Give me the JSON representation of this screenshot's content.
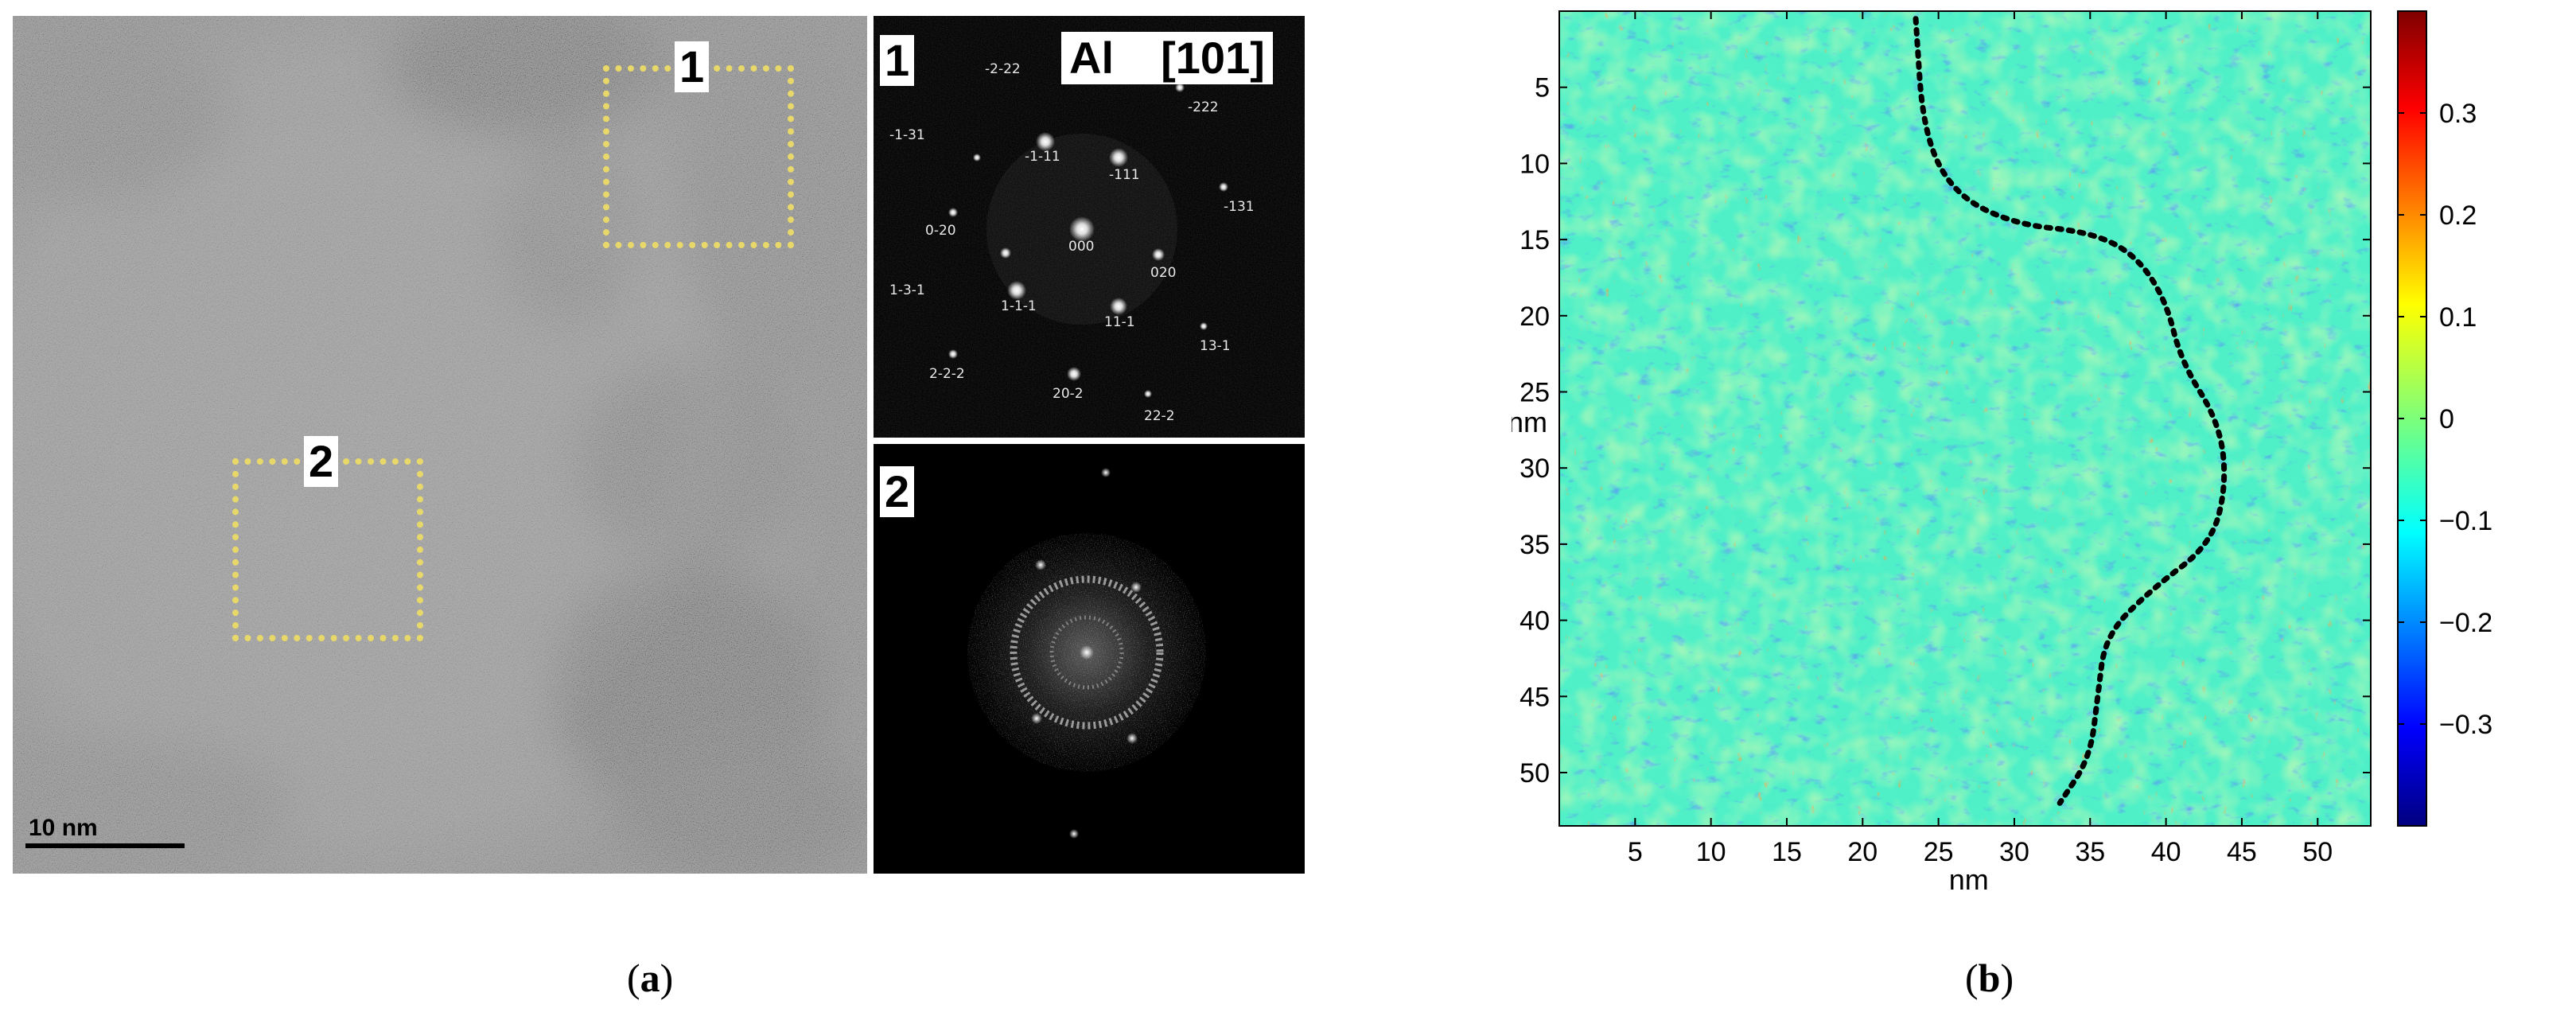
{
  "panel_a": {
    "caption_letter": "a",
    "tem": {
      "roi_1_label": "1",
      "roi_2_label": "2",
      "scale_bar_label": "10 nm"
    },
    "fft_1": {
      "label": "1",
      "title_element": "Al",
      "title_zone": "[101]",
      "spots": [
        "-2-22",
        "-222",
        "-1-31",
        "-1-11",
        "-111",
        "-131",
        "0-20",
        "000",
        "020",
        "1-3-1",
        "1-1-1",
        "11-1",
        "13-1",
        "2-2-2",
        "20-2",
        "22-2"
      ]
    },
    "fft_2": {
      "label": "2"
    }
  },
  "panel_b": {
    "caption_letter": "b",
    "chart_data": {
      "type": "heatmap",
      "xlabel": "nm",
      "ylabel": "nm",
      "x_ticks": [
        5,
        10,
        15,
        20,
        25,
        30,
        35,
        40,
        45,
        50
      ],
      "y_ticks": [
        5,
        10,
        15,
        20,
        25,
        30,
        35,
        40,
        45,
        50
      ],
      "xlim": [
        0,
        53.5
      ],
      "ylim": [
        53.5,
        0
      ],
      "colorbar": {
        "ticks": [
          "0.3",
          "0.2",
          "0.1",
          "0",
          "−0.1",
          "−0.2",
          "−0.3"
        ],
        "range": [
          -0.4,
          0.4
        ],
        "colormap": "jet"
      },
      "boundary_curve_nm": [
        [
          23.5,
          0.5
        ],
        [
          24,
          8
        ],
        [
          26,
          12
        ],
        [
          30,
          14
        ],
        [
          35,
          14.5
        ],
        [
          38,
          16
        ],
        [
          40,
          19
        ],
        [
          41,
          23
        ],
        [
          43.5,
          27
        ],
        [
          44,
          31
        ],
        [
          43,
          35
        ],
        [
          39,
          38
        ],
        [
          36,
          41
        ],
        [
          35.5,
          45
        ],
        [
          35,
          49
        ],
        [
          33,
          52
        ]
      ]
    }
  }
}
